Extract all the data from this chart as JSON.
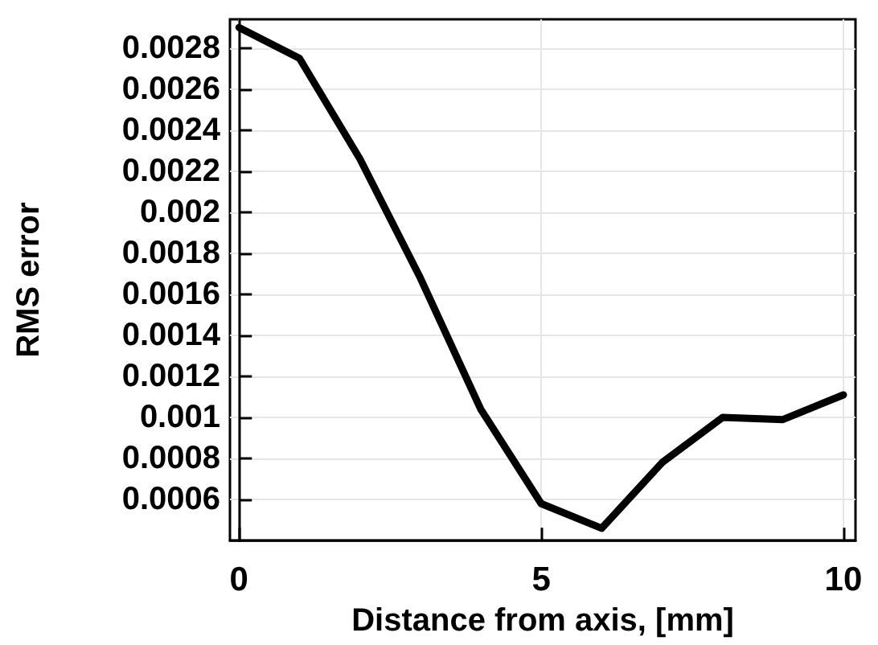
{
  "chart_data": {
    "type": "line",
    "xlabel": "Distance from axis, [mm]",
    "ylabel": "RMS error",
    "x": [
      0,
      1,
      2,
      3,
      4,
      5,
      6,
      7,
      8,
      9,
      10
    ],
    "series": [
      {
        "color": "#000000",
        "values": [
          0.0029,
          0.00275,
          0.00226,
          0.00168,
          0.00104,
          0.00058,
          0.00046,
          0.00078,
          0.001,
          0.00099,
          0.00111
        ]
      }
    ],
    "xlim": [
      -0.15,
      10.2
    ],
    "xticks": [
      0,
      5,
      10
    ],
    "ylim": [
      0.0004,
      0.00294
    ],
    "yticks": [
      0.0006,
      0.0008,
      0.001,
      0.0012,
      0.0014,
      0.0016,
      0.0018,
      0.002,
      0.0022,
      0.0024,
      0.0026,
      0.0028
    ],
    "grid": true,
    "marker": "none",
    "line_style": "solid"
  }
}
